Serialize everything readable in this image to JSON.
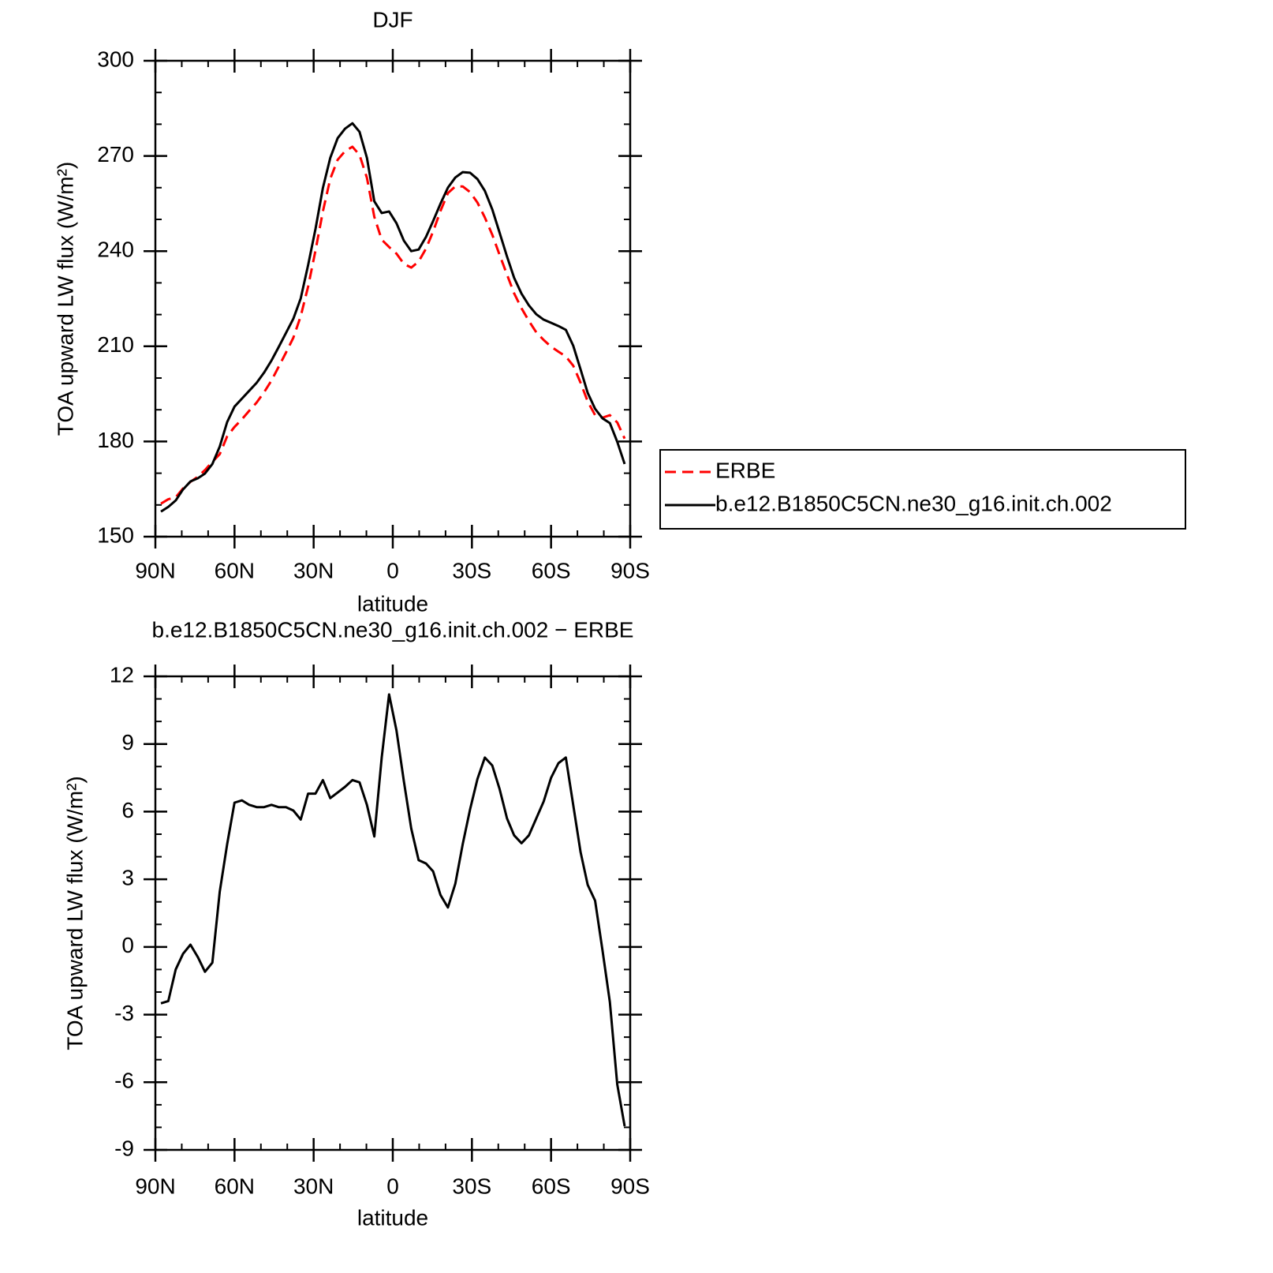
{
  "chart_data": [
    {
      "type": "line",
      "title": "DJF",
      "x_label": "latitude",
      "y_label": "TOA upward LW flux (W/m²)",
      "x": [
        87.9,
        85.1,
        82.3,
        79.5,
        76.7,
        73.9,
        71.2,
        68.4,
        65.6,
        62.8,
        60.0,
        57.2,
        54.4,
        51.6,
        48.8,
        46.0,
        43.3,
        40.5,
        37.7,
        34.9,
        32.1,
        29.3,
        26.5,
        23.7,
        20.9,
        18.1,
        15.3,
        12.6,
        9.8,
        7.0,
        4.2,
        1.4,
        -1.4,
        -4.2,
        -7.0,
        -9.8,
        -12.6,
        -15.3,
        -18.1,
        -20.9,
        -23.7,
        -26.5,
        -29.3,
        -32.1,
        -34.9,
        -37.7,
        -40.5,
        -43.3,
        -46.0,
        -48.8,
        -51.6,
        -54.4,
        -57.2,
        -60.0,
        -62.8,
        -65.6,
        -68.4,
        -71.2,
        -73.9,
        -76.7,
        -79.5,
        -82.3,
        -85.1,
        -87.9
      ],
      "series": [
        {
          "name": "ERBE",
          "color": "#ff0000",
          "dashed": true,
          "values": [
            160.4,
            161.8,
            162.4,
            165.2,
            167.3,
            168.9,
            171.0,
            173.6,
            176.0,
            181.6,
            184.6,
            187.0,
            189.7,
            192.3,
            195.5,
            199.2,
            203.5,
            208.0,
            212.7,
            219.5,
            228.8,
            240.2,
            252.5,
            262.8,
            268.8,
            271.5,
            272.9,
            270.3,
            263.1,
            250.8,
            243.6,
            241.3,
            239.2,
            236.0,
            234.8,
            236.7,
            240.8,
            246.2,
            252.7,
            258.3,
            260.4,
            260.4,
            258.6,
            255.3,
            250.6,
            245.2,
            238.8,
            232.6,
            226.7,
            222.0,
            218.0,
            214.4,
            212.0,
            209.9,
            208.3,
            206.8,
            203.9,
            198.5,
            192.6,
            188.3,
            187.5,
            188.3,
            186.0,
            180.9
          ]
        },
        {
          "name": "b.e12.B1850C5CN.ne30_g16.init.ch.002",
          "color": "#000000",
          "dashed": false,
          "values": [
            157.9,
            159.4,
            161.4,
            164.9,
            167.4,
            168.4,
            169.9,
            172.9,
            178.4,
            186.1,
            191.0,
            193.5,
            196.0,
            198.5,
            201.7,
            205.5,
            209.7,
            214.2,
            218.7,
            225.1,
            235.6,
            247.0,
            259.9,
            269.4,
            275.6,
            278.6,
            280.3,
            277.6,
            269.4,
            255.7,
            252.0,
            252.5,
            248.8,
            243.3,
            240.0,
            240.5,
            244.5,
            249.5,
            255.0,
            260.0,
            263.2,
            264.9,
            264.7,
            262.7,
            259.0,
            253.2,
            245.8,
            238.3,
            231.6,
            226.6,
            222.9,
            220.1,
            218.4,
            217.4,
            216.4,
            215.2,
            210.2,
            202.7,
            195.3,
            190.3,
            187.3,
            185.8,
            179.9,
            172.9
          ]
        }
      ],
      "xlim": [
        90,
        -90
      ],
      "xticks": [
        {
          "value": 90,
          "label": "90N"
        },
        {
          "value": 60,
          "label": "60N"
        },
        {
          "value": 30,
          "label": "30N"
        },
        0,
        {
          "value": -30,
          "label": "30S"
        },
        {
          "value": -60,
          "label": "60S"
        },
        {
          "value": -90,
          "label": "90S"
        }
      ],
      "ylim": [
        150,
        300
      ],
      "yticks": [
        150,
        180,
        210,
        240,
        270,
        300
      ],
      "minor_ticks": true,
      "legend": "right"
    },
    {
      "type": "line",
      "title": "b.e12.B1850C5CN.ne30_g16.init.ch.002 − ERBE",
      "x_label": "latitude",
      "y_label": "TOA upward LW flux (W/m²)",
      "x": [
        87.9,
        85.1,
        82.3,
        79.5,
        76.7,
        73.9,
        71.2,
        68.4,
        65.6,
        62.8,
        60.0,
        57.2,
        54.4,
        51.6,
        48.8,
        46.0,
        43.3,
        40.5,
        37.7,
        34.9,
        32.1,
        29.3,
        26.5,
        23.7,
        20.9,
        18.1,
        15.3,
        12.6,
        9.8,
        7.0,
        4.2,
        1.4,
        -1.4,
        -4.2,
        -7.0,
        -9.8,
        -12.6,
        -15.3,
        -18.1,
        -20.9,
        -23.7,
        -26.5,
        -29.3,
        -32.1,
        -34.9,
        -37.7,
        -40.5,
        -43.3,
        -46.0,
        -48.8,
        -51.6,
        -54.4,
        -57.2,
        -60.0,
        -62.8,
        -65.6,
        -68.4,
        -71.2,
        -73.9,
        -76.7,
        -79.5,
        -82.3,
        -85.1,
        -87.9
      ],
      "color": "#000000",
      "values": [
        -2.5,
        -2.4,
        -1.0,
        -0.3,
        0.1,
        -0.45,
        -1.1,
        -0.7,
        2.45,
        4.55,
        6.4,
        6.5,
        6.3,
        6.2,
        6.2,
        6.3,
        6.2,
        6.2,
        6.05,
        5.65,
        6.8,
        6.8,
        7.4,
        6.6,
        6.85,
        7.1,
        7.4,
        7.3,
        6.3,
        4.9,
        8.4,
        11.2,
        9.6,
        7.35,
        5.25,
        3.85,
        3.7,
        3.35,
        2.3,
        1.75,
        2.8,
        4.55,
        6.1,
        7.45,
        8.4,
        8.05,
        7.0,
        5.7,
        4.95,
        4.6,
        4.95,
        5.7,
        6.45,
        7.5,
        8.15,
        8.4,
        6.3,
        4.2,
        2.75,
        2.05,
        -0.15,
        -2.45,
        -6.1,
        -7.95
      ],
      "xlim": [
        90,
        -90
      ],
      "xticks": [
        {
          "value": 90,
          "label": "90N"
        },
        {
          "value": 60,
          "label": "60N"
        },
        {
          "value": 30,
          "label": "30N"
        },
        0,
        {
          "value": -30,
          "label": "30S"
        },
        {
          "value": -60,
          "label": "60S"
        },
        {
          "value": -90,
          "label": "90S"
        }
      ],
      "ylim": [
        -9,
        12
      ],
      "yticks": [
        -9,
        -6,
        -3,
        0,
        3,
        6,
        9,
        12
      ],
      "minor_ticks": true
    }
  ]
}
